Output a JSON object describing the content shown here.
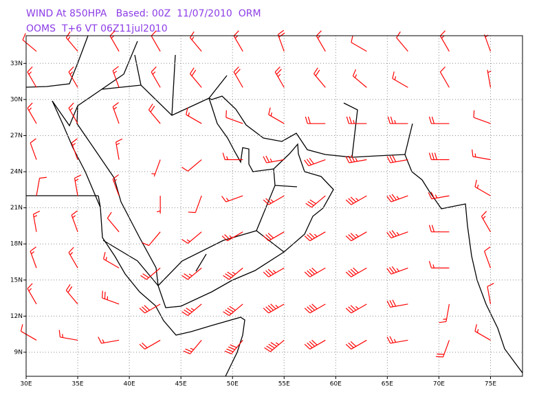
{
  "title": {
    "line1": "WIND At 850HPA   Based: 00Z  11/07/2010  ORM",
    "line2": "OOMS  T+6 VT 06Z11jul2010"
  },
  "map": {
    "xlim": [
      30,
      78.1
    ],
    "ylim": [
      7,
      35.3
    ],
    "xticks": [
      {
        "value": 30,
        "label": "30E"
      },
      {
        "value": 35,
        "label": "35E"
      },
      {
        "value": 40,
        "label": "40E"
      },
      {
        "value": 45,
        "label": "45E"
      },
      {
        "value": 50,
        "label": "50E"
      },
      {
        "value": 55,
        "label": "55E"
      },
      {
        "value": 60,
        "label": "60E"
      },
      {
        "value": 65,
        "label": "65E"
      },
      {
        "value": 70,
        "label": "70E"
      },
      {
        "value": 75,
        "label": "75E"
      }
    ],
    "yticks": [
      {
        "value": 9,
        "label": "9N"
      },
      {
        "value": 12,
        "label": "12N"
      },
      {
        "value": 15,
        "label": "15N"
      },
      {
        "value": 18,
        "label": "18N"
      },
      {
        "value": 21,
        "label": "21N"
      },
      {
        "value": 24,
        "label": "24N"
      },
      {
        "value": 27,
        "label": "27N"
      },
      {
        "value": 30,
        "label": "30N"
      },
      {
        "value": 33,
        "label": "33N"
      }
    ],
    "grid": true,
    "wind": {
      "color": "#ff0000",
      "lons": [
        31,
        35,
        39,
        43,
        47,
        51,
        55,
        59,
        63,
        67,
        71,
        75
      ],
      "lats": [
        34,
        31,
        28,
        25,
        22,
        19,
        16,
        13,
        10
      ],
      "dir": [
        [
          310,
          320,
          330,
          330,
          320,
          330,
          340,
          330,
          300,
          320,
          330,
          340
        ],
        [
          330,
          330,
          340,
          330,
          320,
          330,
          330,
          320,
          310,
          300,
          330,
          350
        ],
        [
          330,
          330,
          340,
          320,
          300,
          290,
          300,
          270,
          270,
          270,
          270,
          290
        ],
        [
          340,
          340,
          350,
          200,
          230,
          270,
          260,
          250,
          260,
          260,
          270,
          280
        ],
        [
          10,
          350,
          340,
          180,
          200,
          250,
          240,
          230,
          240,
          250,
          260,
          300
        ],
        [
          350,
          340,
          320,
          220,
          230,
          240,
          240,
          240,
          240,
          250,
          270,
          330
        ],
        [
          340,
          330,
          300,
          230,
          230,
          230,
          240,
          240,
          240,
          250,
          270,
          340
        ],
        [
          330,
          320,
          290,
          240,
          230,
          230,
          240,
          240,
          240,
          260,
          190,
          350
        ],
        [
          300,
          280,
          260,
          240,
          220,
          220,
          230,
          240,
          240,
          260,
          200,
          300
        ]
      ],
      "speed": [
        [
          10,
          15,
          15,
          10,
          15,
          15,
          20,
          15,
          10,
          10,
          15,
          5
        ],
        [
          15,
          15,
          15,
          15,
          20,
          20,
          25,
          20,
          15,
          15,
          10,
          5
        ],
        [
          15,
          15,
          15,
          20,
          15,
          10,
          15,
          20,
          25,
          25,
          20,
          10
        ],
        [
          10,
          15,
          15,
          5,
          10,
          15,
          25,
          30,
          35,
          30,
          30,
          15
        ],
        [
          10,
          15,
          15,
          5,
          10,
          15,
          25,
          30,
          35,
          35,
          25,
          15
        ],
        [
          15,
          15,
          10,
          10,
          15,
          25,
          30,
          35,
          35,
          35,
          20,
          15
        ],
        [
          15,
          15,
          15,
          20,
          25,
          35,
          35,
          40,
          40,
          35,
          15,
          10
        ],
        [
          15,
          20,
          25,
          30,
          35,
          40,
          45,
          40,
          35,
          30,
          15,
          10
        ],
        [
          10,
          15,
          15,
          20,
          25,
          40,
          45,
          40,
          30,
          25,
          20,
          15
        ]
      ]
    }
  }
}
